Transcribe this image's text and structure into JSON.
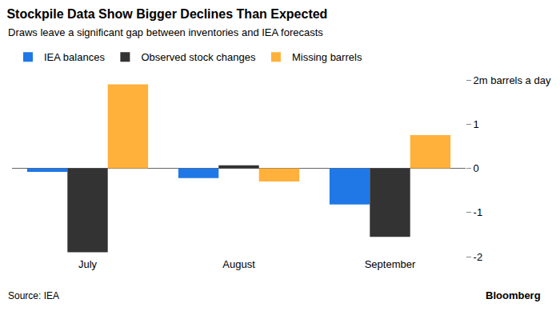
{
  "chart_data": {
    "type": "bar",
    "title": "Stockpile Data Show Bigger Declines Than Expected",
    "subtitle": "Draws leave a significant gap between inventories and IEA forecasts",
    "source": "Source: IEA",
    "credit": "Bloomberg",
    "categories": [
      "July",
      "August",
      "September"
    ],
    "series": [
      {
        "name": "IEA balances",
        "color": "#1f78e6",
        "values": [
          -0.08,
          -0.22,
          -0.82
        ]
      },
      {
        "name": "Observed stock changes",
        "color": "#333333",
        "values": [
          -1.9,
          0.07,
          -1.55
        ]
      },
      {
        "name": "Missing barrels",
        "color": "#ffb13b",
        "values": [
          1.9,
          -0.3,
          0.75
        ]
      }
    ],
    "ylim": [
      -2,
      2
    ],
    "yticks": [
      -2,
      -1,
      0,
      1,
      {
        "value": 2,
        "label": "2m barrels a day"
      }
    ],
    "grid": false,
    "legend": "top"
  }
}
